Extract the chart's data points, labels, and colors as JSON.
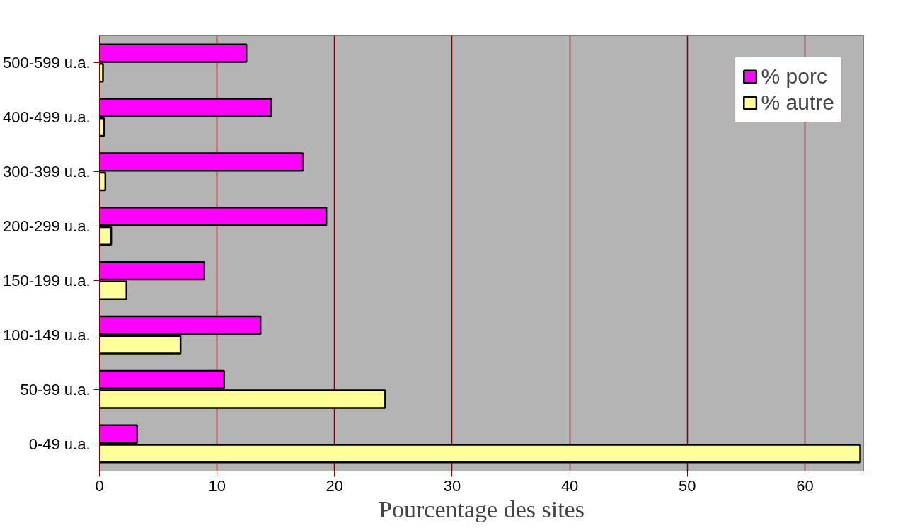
{
  "chart_data": {
    "type": "bar",
    "orientation": "horizontal",
    "xlabel": "Pourcentage des sites",
    "categories": [
      "500-599 u.a.",
      "400-499 u.a.",
      "300-399 u.a.",
      "200-299 u.a.",
      "150-199 u.a.",
      "100-149 u.a.",
      "50-99 u.a.",
      "0-49 u.a."
    ],
    "series": [
      {
        "name": "% porc",
        "color": "#ff00ff",
        "values": [
          12.5,
          14.6,
          17.3,
          19.3,
          8.9,
          13.7,
          10.6,
          3.2
        ]
      },
      {
        "name": "% autre",
        "color": "#ffff99",
        "values": [
          0.3,
          0.4,
          0.5,
          1.0,
          2.3,
          6.9,
          24.3,
          64.7
        ]
      }
    ],
    "xlim": [
      0,
      65
    ],
    "xticks": [
      0,
      10,
      20,
      30,
      40,
      50,
      60
    ],
    "grid": "x",
    "legend": "top right"
  }
}
